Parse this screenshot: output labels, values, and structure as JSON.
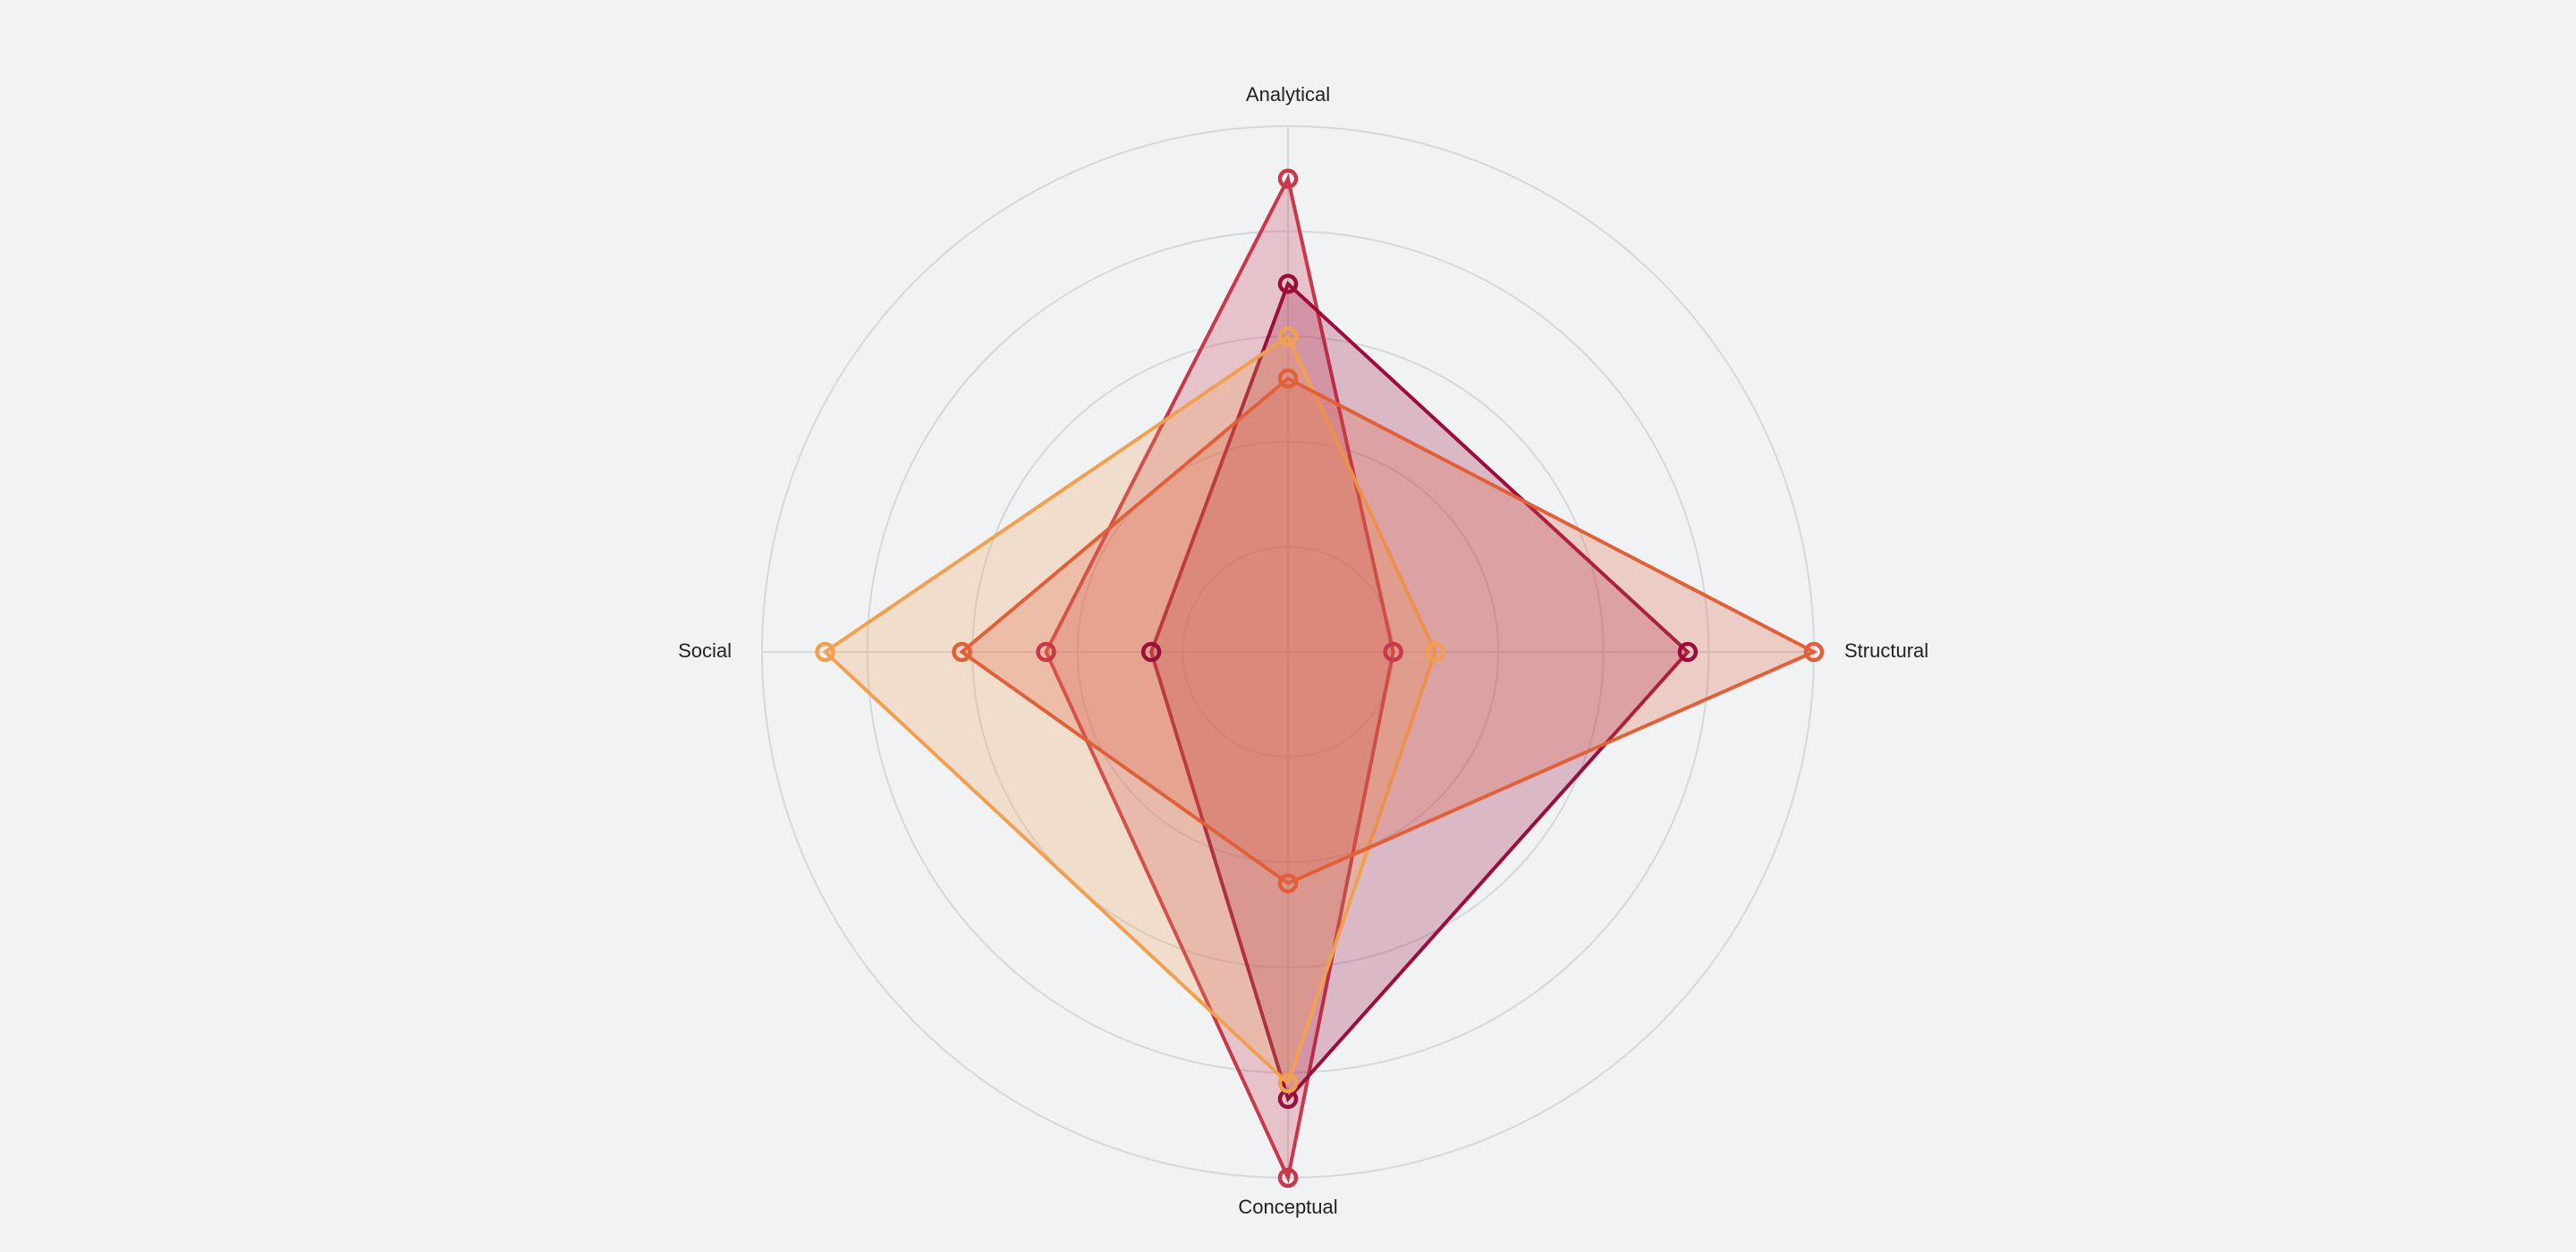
{
  "chart_data": {
    "type": "radar",
    "categories": [
      "Analytical",
      "Structural",
      "Conceptual",
      "Social"
    ],
    "rlim": [
      0,
      5
    ],
    "rticks": [
      1,
      2,
      3,
      4,
      5
    ],
    "grid": true,
    "series": [
      {
        "color": "#c8374a",
        "values": [
          4.5,
          1.0,
          5.0,
          2.3
        ]
      },
      {
        "color": "#9b0d3a",
        "values": [
          3.5,
          3.8,
          4.25,
          1.3
        ]
      },
      {
        "color": "#f0a050",
        "values": [
          3.0,
          1.4,
          4.1,
          4.4
        ]
      },
      {
        "color": "#e0603a",
        "values": [
          2.6,
          5.0,
          2.2,
          3.1
        ]
      }
    ]
  }
}
